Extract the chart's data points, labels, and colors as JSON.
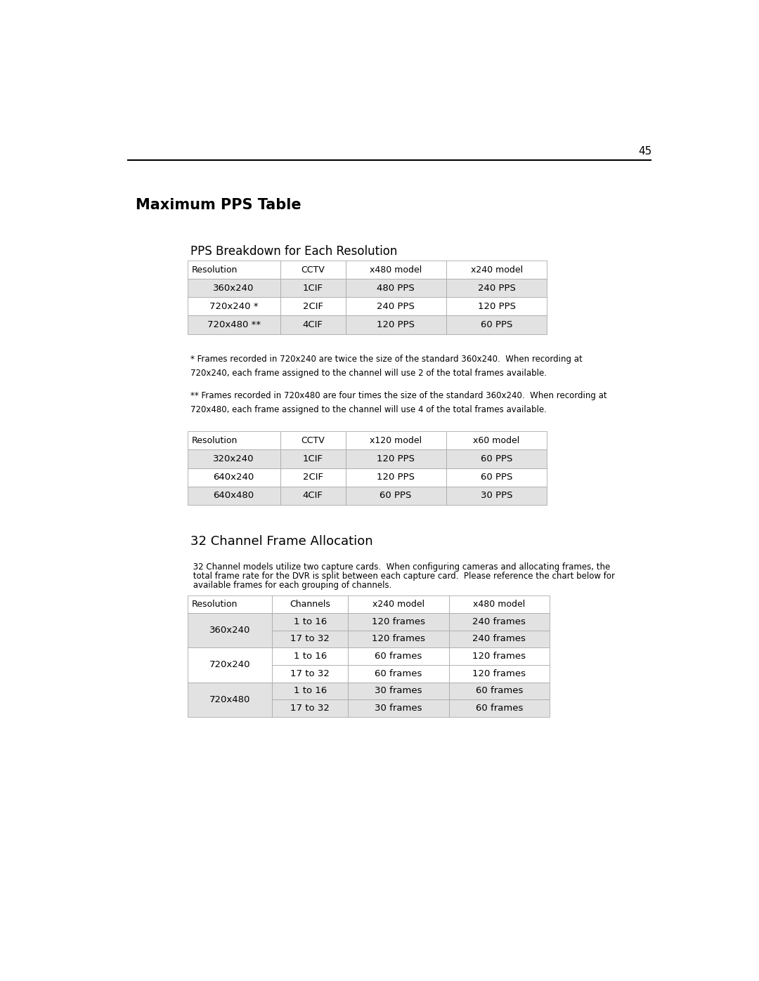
{
  "page_number": "45",
  "main_title": "Maximum PPS Table",
  "section1_title": "PPS Breakdown for Each Resolution",
  "table1_headers": [
    "Resolution",
    "CCTV",
    "x480 model",
    "x240 model"
  ],
  "table1_rows": [
    [
      "360x240",
      "1CIF",
      "480 PPS",
      "240 PPS"
    ],
    [
      "720x240 *",
      "2CIF",
      "240 PPS",
      "120 PPS"
    ],
    [
      "720x480 **",
      "4CIF",
      "120 PPS",
      "60 PPS"
    ]
  ],
  "row_bg_gray": "#e2e2e2",
  "row_bg_white": "#ffffff",
  "footnote1": "* Frames recorded in 720x240 are twice the size of the standard 360x240.  When recording at\n720x240, each frame assigned to the channel will use 2 of the total frames available.",
  "footnote2": "** Frames recorded in 720x480 are four times the size of the standard 360x240.  When recording at\n720x480, each frame assigned to the channel will use 4 of the total frames available.",
  "table2_headers": [
    "Resolution",
    "CCTV",
    "x120 model",
    "x60 model"
  ],
  "table2_rows": [
    [
      "320x240",
      "1CIF",
      "120 PPS",
      "60 PPS"
    ],
    [
      "640x240",
      "2CIF",
      "120 PPS",
      "60 PPS"
    ],
    [
      "640x480",
      "4CIF",
      "60 PPS",
      "30 PPS"
    ]
  ],
  "section2_title": "32 Channel Frame Allocation",
  "section2_body1": " 32 Channel models utilize two capture cards.  When configuring cameras and allocating frames, the",
  "section2_body2": " total frame rate for the DVR is split between each capture card.  Please reference the chart below for",
  "section2_body3": " available frames for each grouping of channels.",
  "table3_headers": [
    "Resolution",
    "Channels",
    "x240 model",
    "x480 model"
  ],
  "table3_groups": [
    {
      "label": "360x240",
      "rows": [
        [
          "",
          "1 to 16",
          "120 frames",
          "240 frames"
        ],
        [
          "",
          "17 to 32",
          "120 frames",
          "240 frames"
        ]
      ]
    },
    {
      "label": "720x240",
      "rows": [
        [
          "",
          "1 to 16",
          "60 frames",
          "120 frames"
        ],
        [
          "",
          "17 to 32",
          "60 frames",
          "120 frames"
        ]
      ]
    },
    {
      "label": "720x480",
      "rows": [
        [
          "",
          "1 to 16",
          "30 frames",
          "60 frames"
        ],
        [
          "",
          "17 to 32",
          "30 frames",
          "60 frames"
        ]
      ]
    }
  ],
  "bg_color": "#ffffff",
  "border_color": "#aaaaaa",
  "header_text_color": "#000000",
  "cell_text_color": "#000000"
}
